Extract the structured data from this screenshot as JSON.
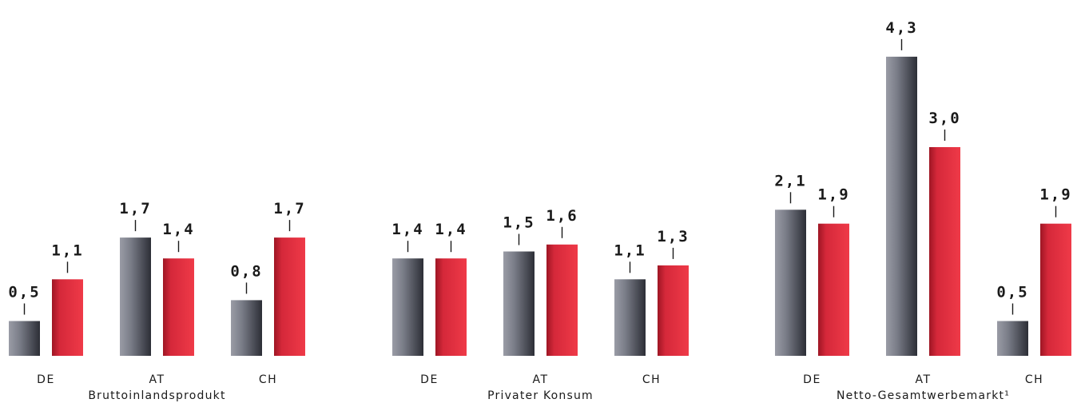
{
  "colors": {
    "series_a": "#7a7d88",
    "series_b": "#e0293a",
    "text": "#1a1a1a"
  },
  "chart_data": [
    {
      "type": "bar",
      "title": "Bruttoinlandsprodukt",
      "categories": [
        "DE",
        "AT",
        "CH"
      ],
      "series": [
        {
          "values": [
            0.5,
            1.7,
            0.8
          ]
        },
        {
          "values": [
            1.1,
            1.4,
            1.7
          ]
        }
      ],
      "value_labels": [
        [
          "0,5",
          "1,7",
          "0,8"
        ],
        [
          "1,1",
          "1,4",
          "1,7"
        ]
      ],
      "ylim": [
        0,
        4.5
      ],
      "grid": false
    },
    {
      "type": "bar",
      "title": "Privater Konsum",
      "categories": [
        "DE",
        "AT",
        "CH"
      ],
      "series": [
        {
          "values": [
            1.4,
            1.5,
            1.1
          ]
        },
        {
          "values": [
            1.4,
            1.6,
            1.3
          ]
        }
      ],
      "value_labels": [
        [
          "1,4",
          "1,5",
          "1,1"
        ],
        [
          "1,4",
          "1,6",
          "1,3"
        ]
      ],
      "ylim": [
        0,
        4.5
      ],
      "grid": false
    },
    {
      "type": "bar",
      "title": "Netto-Gesamtwerbemarkt¹",
      "categories": [
        "DE",
        "AT",
        "CH"
      ],
      "series": [
        {
          "values": [
            2.1,
            4.3,
            0.5
          ]
        },
        {
          "values": [
            1.9,
            3.0,
            1.9
          ]
        }
      ],
      "value_labels": [
        [
          "2,1",
          "4,3",
          "0,5"
        ],
        [
          "1,9",
          "3,0",
          "1,9"
        ]
      ],
      "ylim": [
        0,
        4.5
      ],
      "grid": false
    }
  ]
}
